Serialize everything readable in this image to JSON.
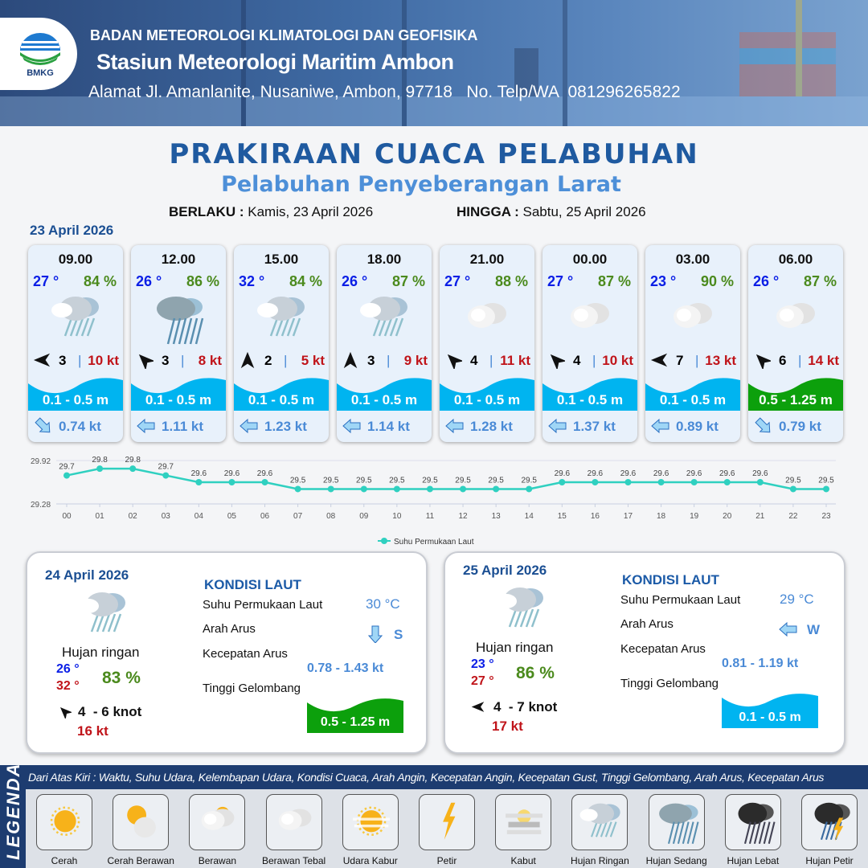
{
  "header": {
    "logo_text": "BMKG",
    "agency": "BADAN METEOROLOGI KLIMATOLOGI DAN GEOFISIKA",
    "station": "Stasiun Meteorologi Maritim Ambon",
    "address": "Alamat Jl. Amanlanite, Nusaniwe, Ambon, 97718   No. Telp/WA  081296265822"
  },
  "title": "PRAKIRAAN CUACA PELABUHAN",
  "subtitle": "Pelabuhan Penyeberangan Larat",
  "validity": {
    "from_label": "BERLAKU :",
    "from": "Kamis, 23 April 2026",
    "to_label": "HINGGA :",
    "to": "Sabtu, 25 April 2026"
  },
  "day1": {
    "date": "23 April 2026",
    "cards": [
      {
        "time": "09.00",
        "temp": "27 °",
        "hum": "84 %",
        "weather": "hujan-ringan",
        "wind_dir_deg": 270,
        "wind": "3",
        "gust": "10 kt",
        "wave": "0.1 - 0.5 m",
        "wave_color": "#00b4f0",
        "current_dir_deg": 135,
        "current": "0.74 kt"
      },
      {
        "time": "12.00",
        "temp": "26 °",
        "hum": "86 %",
        "weather": "hujan-sedang",
        "wind_dir_deg": 315,
        "wind": "3",
        "gust": "8 kt",
        "wave": "0.1 - 0.5 m",
        "wave_color": "#00b4f0",
        "current_dir_deg": 270,
        "current": "1.11 kt"
      },
      {
        "time": "15.00",
        "temp": "32 °",
        "hum": "84 %",
        "weather": "hujan-ringan",
        "wind_dir_deg": 0,
        "wind": "2",
        "gust": "5 kt",
        "wave": "0.1 - 0.5 m",
        "wave_color": "#00b4f0",
        "current_dir_deg": 270,
        "current": "1.23 kt"
      },
      {
        "time": "18.00",
        "temp": "26 °",
        "hum": "87 %",
        "weather": "hujan-ringan",
        "wind_dir_deg": 0,
        "wind": "3",
        "gust": "9 kt",
        "wave": "0.1 - 0.5 m",
        "wave_color": "#00b4f0",
        "current_dir_deg": 270,
        "current": "1.14 kt"
      },
      {
        "time": "21.00",
        "temp": "27 °",
        "hum": "88 %",
        "weather": "berawan-tebal",
        "wind_dir_deg": 315,
        "wind": "4",
        "gust": "11 kt",
        "wave": "0.1 - 0.5 m",
        "wave_color": "#00b4f0",
        "current_dir_deg": 270,
        "current": "1.28 kt"
      },
      {
        "time": "00.00",
        "temp": "27 °",
        "hum": "87 %",
        "weather": "berawan-tebal",
        "wind_dir_deg": 315,
        "wind": "4",
        "gust": "10 kt",
        "wave": "0.1 - 0.5 m",
        "wave_color": "#00b4f0",
        "current_dir_deg": 270,
        "current": "1.37 kt"
      },
      {
        "time": "03.00",
        "temp": "23 °",
        "hum": "90 %",
        "weather": "berawan-tebal",
        "wind_dir_deg": 270,
        "wind": "7",
        "gust": "13 kt",
        "wave": "0.1 - 0.5 m",
        "wave_color": "#00b4f0",
        "current_dir_deg": 270,
        "current": "0.89 kt"
      },
      {
        "time": "06.00",
        "temp": "26 °",
        "hum": "87 %",
        "weather": "berawan-tebal",
        "wind_dir_deg": 315,
        "wind": "6",
        "gust": "14 kt",
        "wave": "0.5 - 1.25 m",
        "wave_color": "#0ca00c",
        "current_dir_deg": 135,
        "current": "0.79 kt"
      }
    ]
  },
  "chart_data": {
    "type": "line",
    "categories": [
      "00",
      "01",
      "02",
      "03",
      "04",
      "05",
      "06",
      "07",
      "08",
      "09",
      "10",
      "11",
      "12",
      "13",
      "14",
      "15",
      "16",
      "17",
      "18",
      "19",
      "20",
      "21",
      "22",
      "23"
    ],
    "series": [
      {
        "name": "Suhu Permukaan Laut",
        "values": [
          29.7,
          29.8,
          29.8,
          29.7,
          29.6,
          29.6,
          29.6,
          29.5,
          29.5,
          29.5,
          29.5,
          29.5,
          29.5,
          29.5,
          29.5,
          29.6,
          29.6,
          29.6,
          29.6,
          29.6,
          29.6,
          29.6,
          29.5,
          29.5
        ],
        "color": "#2fd0c0"
      }
    ],
    "ylim": [
      29.28,
      29.92
    ],
    "yticks": [
      "29.92",
      "29.28"
    ],
    "grid": true,
    "legend": "bottom"
  },
  "days": [
    {
      "date": "24 April 2026",
      "weather": "Hujan ringan",
      "tmin": "26 °",
      "tmax": "32 °",
      "hum": "83 %",
      "wind_dir_deg": 315,
      "wind": "4  - 6 knot",
      "gust": "16 kt",
      "kondisi_title": "KONDISI LAUT",
      "sst_label": "Suhu Permukaan Laut",
      "sst": "30 °C",
      "arus_label": "Arah Arus",
      "arus_dir": "S",
      "arus_dir_deg": 180,
      "kec_label": "Kecepatan Arus",
      "kec": "0.78 - 1.43 kt",
      "tg_label": "Tinggi Gelombang",
      "tg": "0.5 - 1.25 m",
      "tg_color": "#0ca00c"
    },
    {
      "date": "25 April 2026",
      "weather": "Hujan ringan",
      "tmin": "23 °",
      "tmax": "27 °",
      "hum": "86 %",
      "wind_dir_deg": 270,
      "wind": "4  - 7 knot",
      "gust": "17 kt",
      "kondisi_title": "KONDISI LAUT",
      "sst_label": "Suhu Permukaan Laut",
      "sst": "29 °C",
      "arus_label": "Arah Arus",
      "arus_dir": "W",
      "arus_dir_deg": 270,
      "kec_label": "Kecepatan Arus",
      "kec": "0.81 - 1.19 kt",
      "tg_label": "Tinggi Gelombang",
      "tg": "0.1 - 0.5 m",
      "tg_color": "#00b4f0"
    }
  ],
  "legend": {
    "title": "LEGENDA",
    "description": "Dari Atas Kiri : Waktu, Suhu Udara, Kelembapan Udara, Kondisi Cuaca, Arah Angin, Kecepatan Angin, Kecepatan Gust, Tinggi Gelombang, Arah Arus, Kecepatan Arus",
    "items": [
      {
        "label": "Cerah",
        "icon": "cerah"
      },
      {
        "label": "Cerah Berawan",
        "icon": "cerah-berawan"
      },
      {
        "label": "Berawan",
        "icon": "berawan"
      },
      {
        "label": "Berawan Tebal",
        "icon": "berawan-tebal"
      },
      {
        "label": "Udara Kabur",
        "icon": "udara-kabur"
      },
      {
        "label": "Petir",
        "icon": "petir"
      },
      {
        "label": "Kabut",
        "icon": "kabut"
      },
      {
        "label": "Hujan Ringan",
        "icon": "hujan-ringan"
      },
      {
        "label": "Hujan Sedang",
        "icon": "hujan-sedang"
      },
      {
        "label": "Hujan Lebat",
        "icon": "hujan-lebat"
      },
      {
        "label": "Hujan Petir",
        "icon": "hujan-petir"
      }
    ]
  }
}
